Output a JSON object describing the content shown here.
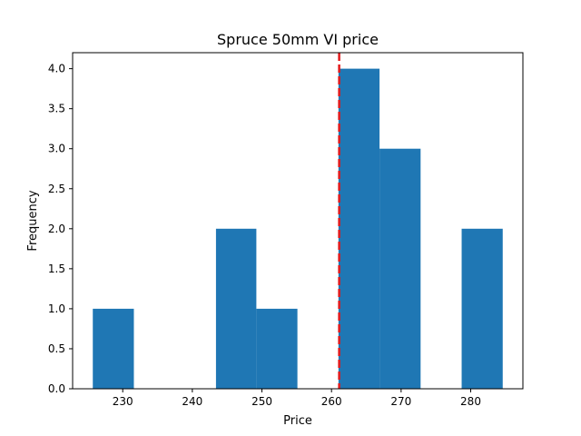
{
  "chart_data": {
    "type": "bar",
    "title": "Spruce 50mm VI price",
    "xlabel": "Price",
    "ylabel": "Frequency",
    "xlim": [
      222.8,
      287.5
    ],
    "ylim": [
      0,
      4.2
    ],
    "xticks": [
      230,
      240,
      250,
      260,
      270,
      280
    ],
    "yticks": [
      0.0,
      0.5,
      1.0,
      1.5,
      2.0,
      2.5,
      3.0,
      3.5,
      4.0
    ],
    "bins": [
      {
        "start": 225.7,
        "end": 231.6,
        "count": 1
      },
      {
        "start": 231.6,
        "end": 237.5,
        "count": 0
      },
      {
        "start": 237.5,
        "end": 243.4,
        "count": 0
      },
      {
        "start": 243.4,
        "end": 249.2,
        "count": 2
      },
      {
        "start": 249.2,
        "end": 255.1,
        "count": 1
      },
      {
        "start": 255.1,
        "end": 261.0,
        "count": 0
      },
      {
        "start": 261.0,
        "end": 266.9,
        "count": 4
      },
      {
        "start": 266.9,
        "end": 272.8,
        "count": 3
      },
      {
        "start": 272.8,
        "end": 278.7,
        "count": 0
      },
      {
        "start": 278.7,
        "end": 284.6,
        "count": 2
      }
    ],
    "reference_line": {
      "x": 261.1,
      "style": "dashed",
      "color": "#e31a1c"
    },
    "bar_color": "#1f77b4",
    "grid": false
  }
}
